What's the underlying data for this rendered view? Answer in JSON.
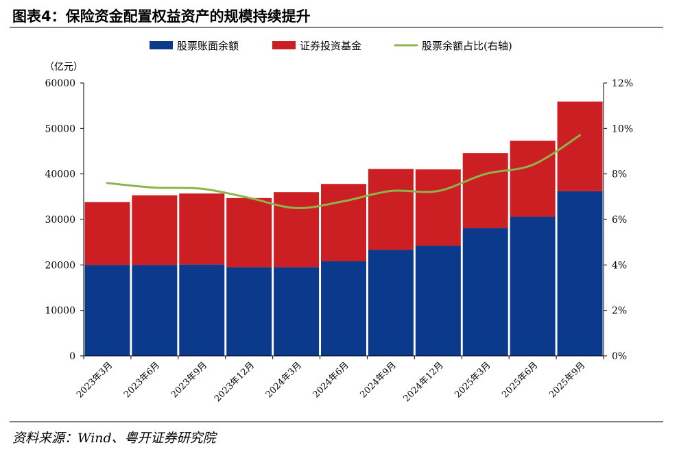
{
  "page": {
    "title": "图表4：保险资金配置权益资产的规模持续提升",
    "source": "资料来源：Wind、粤开证券研究院"
  },
  "chart_data": {
    "type": "bar",
    "stacked": true,
    "categories": [
      "2023年3月",
      "2023年6月",
      "2023年9月",
      "2023年12月",
      "2024年3月",
      "2024年6月",
      "2024年9月",
      "2024年12月",
      "2025年3月",
      "2025年6月",
      "2025年9月"
    ],
    "series": [
      {
        "name": "股票账面余额",
        "type": "bar",
        "axis": "left",
        "color": "#0b3a8c",
        "values": [
          20000,
          20000,
          20100,
          19500,
          19500,
          20800,
          23300,
          24200,
          28100,
          30600,
          36200
        ]
      },
      {
        "name": "证券投资基金",
        "type": "bar",
        "axis": "left",
        "color": "#cc1f24",
        "values": [
          13800,
          15300,
          15600,
          15200,
          16500,
          17000,
          17800,
          16800,
          16500,
          16700,
          19700
        ]
      },
      {
        "name": "股票余额占比(右轴)",
        "type": "line",
        "axis": "right",
        "color": "#8fb44a",
        "values": [
          7.6,
          7.4,
          7.35,
          6.95,
          6.5,
          6.8,
          7.25,
          7.25,
          8.0,
          8.4,
          9.7
        ]
      }
    ],
    "left_axis": {
      "label": "（亿元）",
      "min": 0,
      "max": 60000,
      "ticks": [
        0,
        10000,
        20000,
        30000,
        40000,
        50000,
        60000
      ],
      "tick_labels": [
        "0",
        "10000",
        "20000",
        "30000",
        "40000",
        "50000",
        "60000"
      ]
    },
    "right_axis": {
      "min": 0,
      "max": 12,
      "ticks": [
        0,
        2,
        4,
        6,
        8,
        10,
        12
      ],
      "tick_labels": [
        "0%",
        "2%",
        "4%",
        "6%",
        "8%",
        "10%",
        "12%"
      ]
    },
    "grid": false,
    "legend_position": "top"
  }
}
